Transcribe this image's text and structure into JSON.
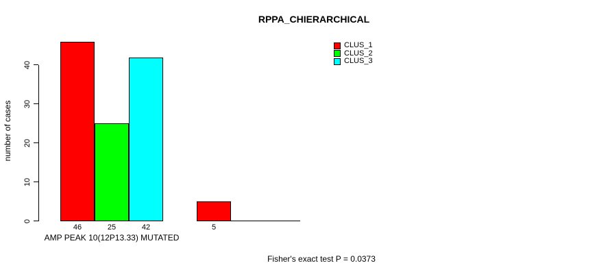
{
  "figure": {
    "background": "#ffffff",
    "text_color": "#000000",
    "axis_color": "#000000"
  },
  "chart_data": {
    "type": "bar",
    "title": "RPPA_CHIERARCHICAL",
    "ylabel": "number of cases",
    "footnote": "Fisher's exact test P = 0.0373",
    "categories": [
      "AMP PEAK 10(12P13.33) MUTATED",
      ""
    ],
    "series": [
      {
        "name": "CLUS_1",
        "color": "#ff0000",
        "values": [
          46,
          5
        ]
      },
      {
        "name": "CLUS_2",
        "color": "#00ff00",
        "values": [
          25,
          0
        ]
      },
      {
        "name": "CLUS_3",
        "color": "#00ffff",
        "values": [
          42,
          0
        ]
      }
    ],
    "bar_value_labels": [
      [
        46,
        25,
        42
      ],
      [
        5,
        null,
        null
      ]
    ],
    "yticks": [
      0,
      10,
      20,
      30,
      40
    ],
    "ylim": [
      0,
      40
    ],
    "grid": false,
    "legend_position": "top-right",
    "bar_border_color": "#000000"
  }
}
